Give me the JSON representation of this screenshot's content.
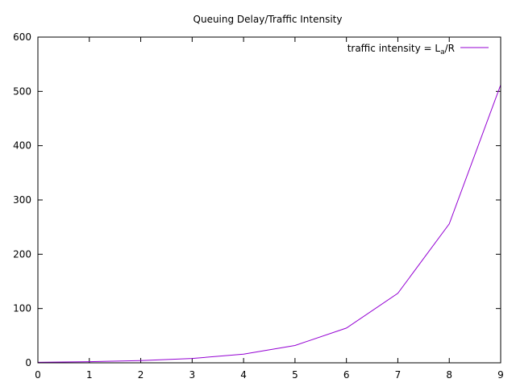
{
  "chart_data": {
    "type": "line",
    "title": "Queuing Delay/Traffic Intensity",
    "xlabel": "",
    "ylabel": "",
    "xlim": [
      0,
      9
    ],
    "ylim": [
      0,
      600
    ],
    "x_ticks": [
      "0",
      "1",
      "2",
      "3",
      "4",
      "5",
      "6",
      "7",
      "8",
      "9"
    ],
    "y_ticks": [
      "0",
      "100",
      "200",
      "300",
      "400",
      "500",
      "600"
    ],
    "grid": false,
    "legend_position": "top-right",
    "legend": {
      "label_prefix": "traffic intensity = L",
      "label_subscript": "a",
      "label_suffix": "/R"
    },
    "series": [
      {
        "name": "traffic intensity = La/R",
        "color": "#9400d3",
        "x": [
          0,
          1,
          2,
          3,
          4,
          5,
          6,
          7,
          8,
          9
        ],
        "values": [
          1,
          2,
          4,
          8,
          16,
          32,
          64,
          128,
          256,
          512
        ]
      }
    ]
  }
}
